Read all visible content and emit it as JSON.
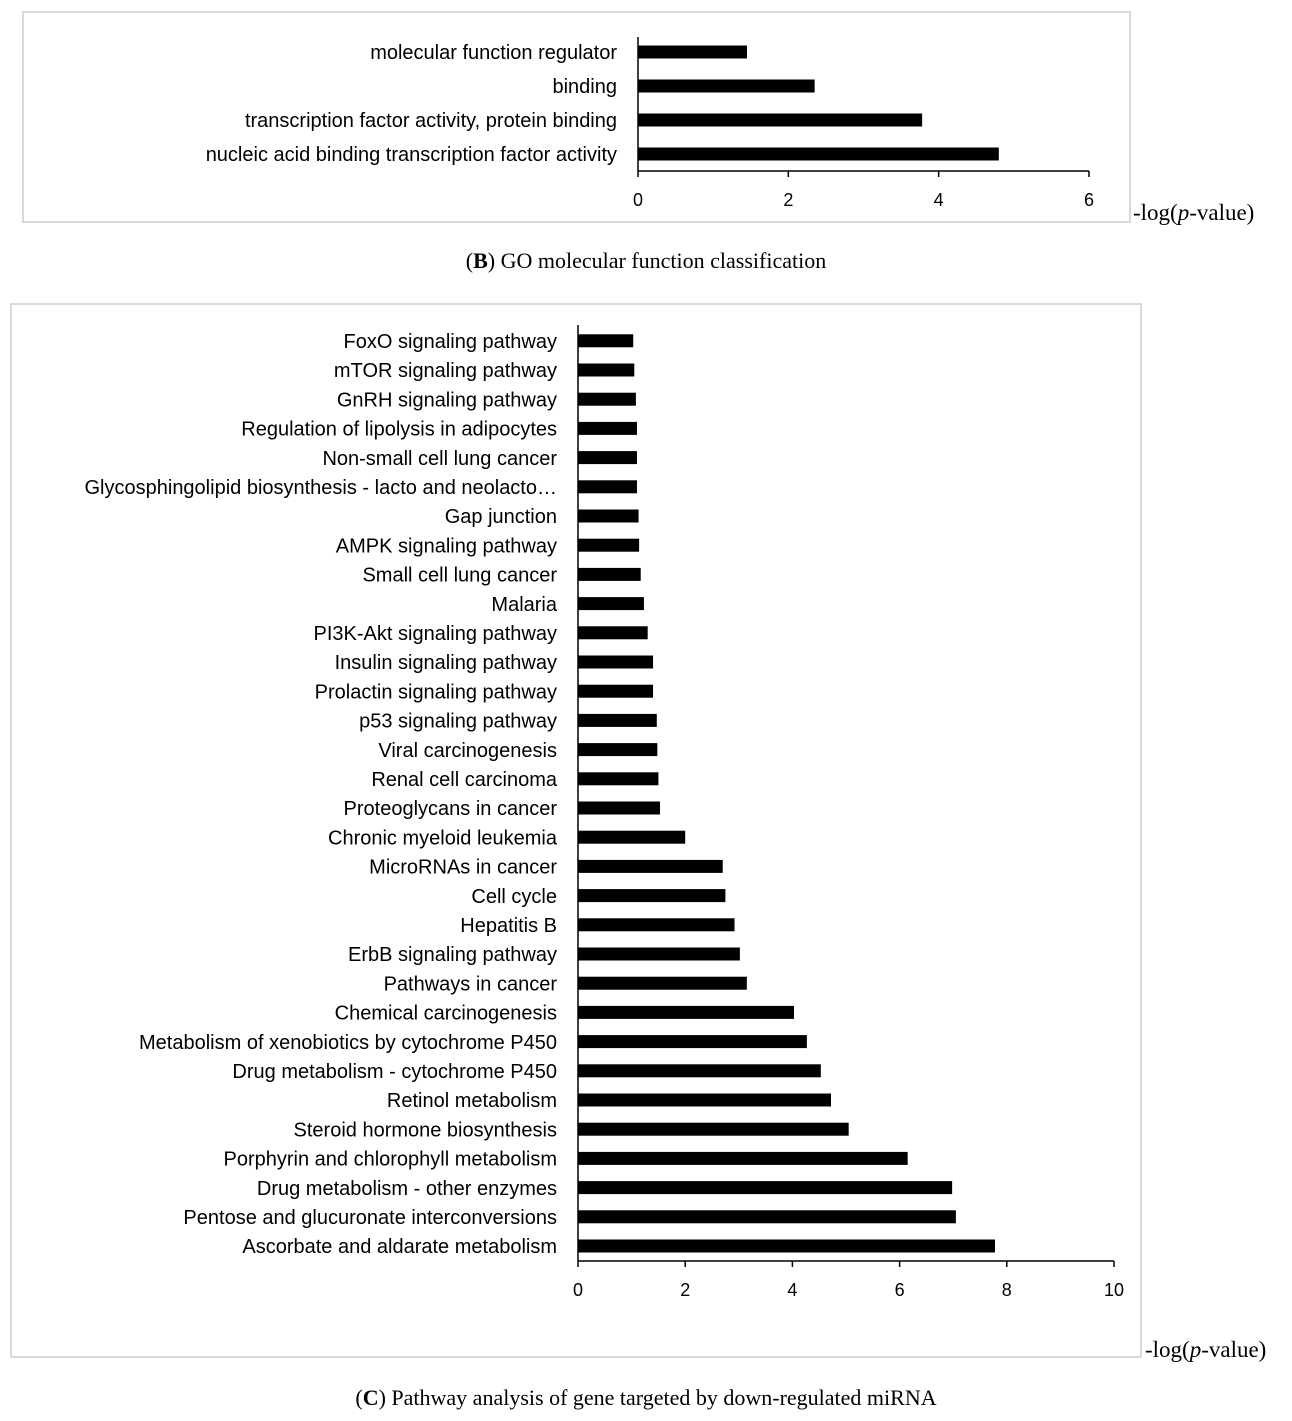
{
  "chart_data": [
    {
      "type": "bar",
      "orientation": "horizontal",
      "title": "",
      "categories": [
        "nucleic acid binding transcription factor activity",
        "transcription factor activity, protein binding",
        "binding",
        "molecular function regulator"
      ],
      "values": [
        4.8,
        3.78,
        2.35,
        1.45
      ],
      "xticks": [
        "0",
        "2",
        "4",
        "6"
      ],
      "xlim": [
        0,
        6
      ],
      "xlabel": {
        "prefix": "-log(",
        "italic": "p",
        "suffix": "-value)"
      },
      "caption": {
        "letter": "B",
        "open": "(",
        "close": ")",
        "text": " GO molecular function classification"
      },
      "grid": false,
      "legend": "none"
    },
    {
      "type": "bar",
      "orientation": "horizontal",
      "title": "",
      "categories": [
        "Ascorbate and aldarate metabolism",
        "Pentose and glucuronate interconversions",
        "Drug metabolism - other enzymes",
        "Porphyrin and chlorophyll metabolism",
        "Steroid hormone biosynthesis",
        "Retinol metabolism",
        "Drug metabolism - cytochrome P450",
        "Metabolism of xenobiotics by cytochrome P450",
        "Chemical carcinogenesis",
        "Pathways in cancer",
        "ErbB signaling pathway",
        "Hepatitis B",
        "Cell cycle",
        "MicroRNAs in cancer",
        "Chronic myeloid leukemia",
        "Proteoglycans in cancer",
        "Renal cell carcinoma",
        "Viral carcinogenesis",
        "p53 signaling pathway",
        "Prolactin signaling pathway",
        "Insulin signaling pathway",
        "PI3K-Akt signaling pathway",
        "Malaria",
        "Small cell lung cancer",
        "AMPK signaling pathway",
        "Gap junction",
        "Glycosphingolipid biosynthesis - lacto and neolacto…",
        "Non-small cell lung cancer",
        "Regulation of lipolysis in adipocytes",
        "GnRH signaling pathway",
        "mTOR signaling pathway",
        "FoxO signaling pathway"
      ],
      "values": [
        7.78,
        7.05,
        6.98,
        6.15,
        5.05,
        4.72,
        4.53,
        4.27,
        4.03,
        3.15,
        3.02,
        2.92,
        2.75,
        2.7,
        2.0,
        1.53,
        1.5,
        1.48,
        1.47,
        1.4,
        1.4,
        1.3,
        1.23,
        1.17,
        1.14,
        1.13,
        1.1,
        1.1,
        1.1,
        1.08,
        1.05,
        1.03
      ],
      "xticks": [
        "0",
        "2",
        "4",
        "6",
        "8",
        "10"
      ],
      "xlim": [
        0,
        10
      ],
      "xlabel": {
        "prefix": "-log(",
        "italic": "p",
        "suffix": "-value)"
      },
      "caption": {
        "letter": "C",
        "open": "(",
        "close": ")",
        "text": " Pathway analysis of gene targeted by down-regulated miRNA"
      },
      "grid": false,
      "legend": "none"
    }
  ]
}
